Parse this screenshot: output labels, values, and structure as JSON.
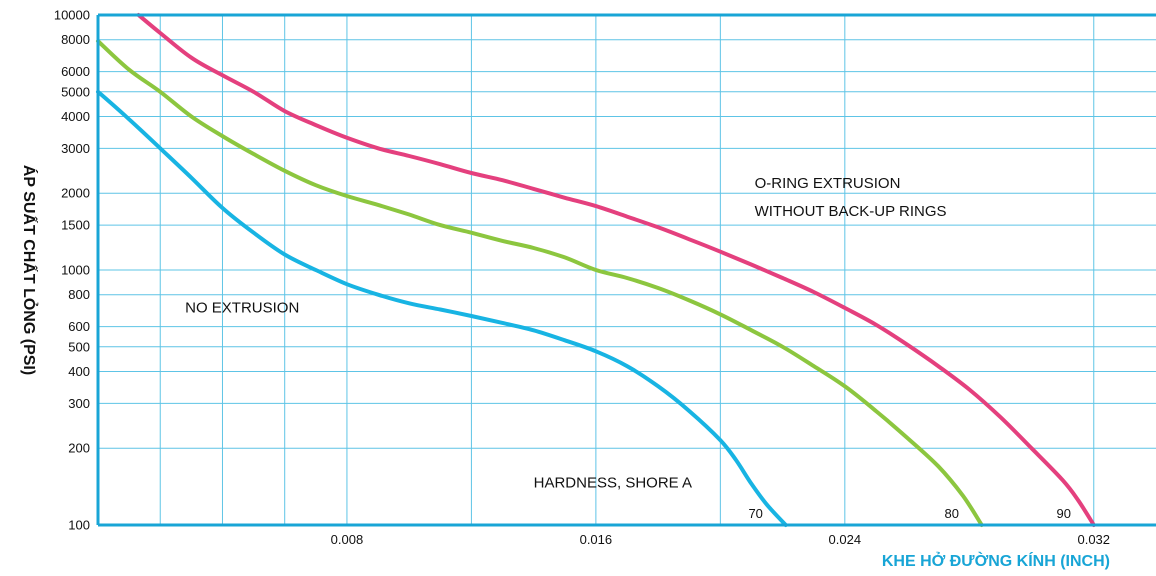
{
  "chart_data": {
    "type": "line",
    "title": "",
    "xlabel": "KHE HỞ ĐƯỜNG KÍNH (INCH)",
    "ylabel": "ÁP SUẤT CHẤT LỎNG (PSI)",
    "xlim": [
      0,
      0.034
    ],
    "ylim": [
      100,
      10000
    ],
    "y_scale": "log",
    "grid": true,
    "x_ticks": [
      0.008,
      0.016,
      0.024,
      0.032
    ],
    "x_tick_labels": [
      "0.008",
      "0.016",
      "0.024",
      "0.032"
    ],
    "x_grid": [
      0.002,
      0.004,
      0.006,
      0.008,
      0.012,
      0.016,
      0.02,
      0.024,
      0.032
    ],
    "y_ticks": [
      100,
      200,
      300,
      400,
      500,
      600,
      800,
      1000,
      1500,
      2000,
      3000,
      4000,
      5000,
      6000,
      8000,
      10000
    ],
    "y_tick_labels": [
      "100",
      "200",
      "300",
      "400",
      "500",
      "600",
      "800",
      "1000",
      "1500",
      "2000",
      "3000",
      "4000",
      "5000",
      "6000",
      "8000",
      "10000"
    ],
    "legend_title": "HARDNESS, SHORE A",
    "series": [
      {
        "name": "70",
        "color": "#18b4e3",
        "points": [
          [
            0.0,
            5000
          ],
          [
            0.001,
            3900
          ],
          [
            0.002,
            3000
          ],
          [
            0.003,
            2300
          ],
          [
            0.004,
            1750
          ],
          [
            0.005,
            1400
          ],
          [
            0.006,
            1150
          ],
          [
            0.007,
            1000
          ],
          [
            0.008,
            880
          ],
          [
            0.009,
            800
          ],
          [
            0.01,
            740
          ],
          [
            0.011,
            700
          ],
          [
            0.012,
            660
          ],
          [
            0.013,
            620
          ],
          [
            0.014,
            580
          ],
          [
            0.015,
            530
          ],
          [
            0.016,
            480
          ],
          [
            0.017,
            420
          ],
          [
            0.018,
            350
          ],
          [
            0.019,
            280
          ],
          [
            0.02,
            215
          ],
          [
            0.0205,
            180
          ],
          [
            0.021,
            145
          ],
          [
            0.0215,
            120
          ],
          [
            0.0221,
            100
          ]
        ]
      },
      {
        "name": "80",
        "color": "#8cc63f",
        "points": [
          [
            0.0,
            7900
          ],
          [
            0.001,
            6100
          ],
          [
            0.002,
            5000
          ],
          [
            0.003,
            4000
          ],
          [
            0.004,
            3350
          ],
          [
            0.005,
            2850
          ],
          [
            0.006,
            2450
          ],
          [
            0.007,
            2150
          ],
          [
            0.008,
            1950
          ],
          [
            0.009,
            1800
          ],
          [
            0.01,
            1650
          ],
          [
            0.011,
            1500
          ],
          [
            0.012,
            1400
          ],
          [
            0.013,
            1300
          ],
          [
            0.014,
            1220
          ],
          [
            0.015,
            1120
          ],
          [
            0.016,
            1000
          ],
          [
            0.017,
            930
          ],
          [
            0.018,
            850
          ],
          [
            0.019,
            760
          ],
          [
            0.02,
            670
          ],
          [
            0.021,
            580
          ],
          [
            0.022,
            500
          ],
          [
            0.023,
            420
          ],
          [
            0.024,
            350
          ],
          [
            0.025,
            280
          ],
          [
            0.026,
            220
          ],
          [
            0.027,
            170
          ],
          [
            0.0278,
            130
          ],
          [
            0.0284,
            100
          ]
        ]
      },
      {
        "name": "90",
        "color": "#e4407e",
        "points": [
          [
            0.0013,
            10000
          ],
          [
            0.002,
            8500
          ],
          [
            0.003,
            6800
          ],
          [
            0.004,
            5800
          ],
          [
            0.005,
            5000
          ],
          [
            0.006,
            4200
          ],
          [
            0.007,
            3700
          ],
          [
            0.008,
            3300
          ],
          [
            0.009,
            3000
          ],
          [
            0.01,
            2800
          ],
          [
            0.011,
            2600
          ],
          [
            0.012,
            2400
          ],
          [
            0.013,
            2250
          ],
          [
            0.014,
            2080
          ],
          [
            0.015,
            1920
          ],
          [
            0.016,
            1780
          ],
          [
            0.017,
            1620
          ],
          [
            0.018,
            1470
          ],
          [
            0.019,
            1320
          ],
          [
            0.02,
            1180
          ],
          [
            0.021,
            1050
          ],
          [
            0.022,
            930
          ],
          [
            0.023,
            820
          ],
          [
            0.024,
            710
          ],
          [
            0.025,
            610
          ],
          [
            0.026,
            510
          ],
          [
            0.027,
            420
          ],
          [
            0.028,
            340
          ],
          [
            0.029,
            265
          ],
          [
            0.03,
            200
          ],
          [
            0.031,
            150
          ],
          [
            0.0315,
            125
          ],
          [
            0.032,
            100
          ]
        ]
      }
    ],
    "annotations": [
      {
        "text": "NO EXTRUSION",
        "x": 0.0028,
        "y": 680
      },
      {
        "text": "O-RING EXTRUSION",
        "x": 0.0211,
        "y": 2100
      },
      {
        "text": "WITHOUT BACK-UP RINGS",
        "x": 0.0211,
        "y": 1630
      },
      {
        "text": "HARDNESS, SHORE A",
        "x": 0.014,
        "y": 140
      }
    ],
    "colors": {
      "axis": "#18a5d6",
      "grid": "#5ec4e6",
      "xlabel": "#18a5d6"
    }
  }
}
